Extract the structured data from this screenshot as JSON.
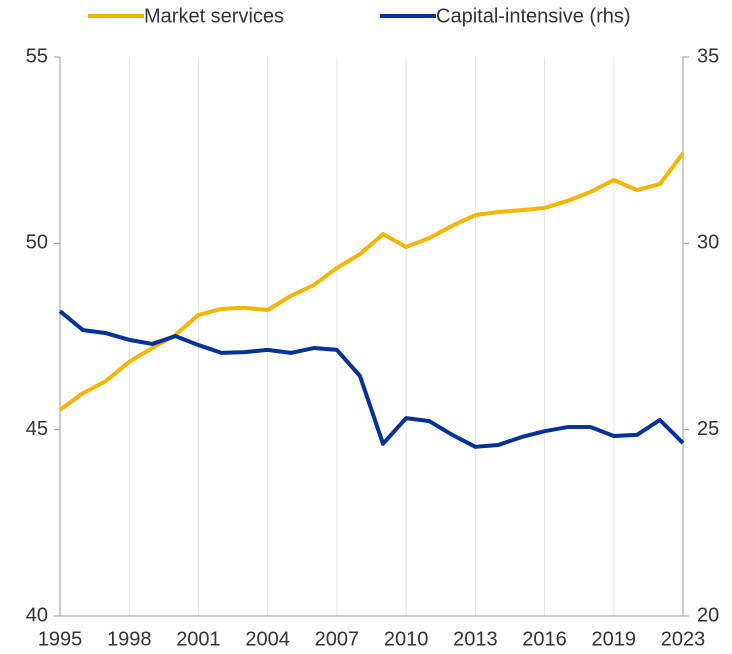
{
  "chart_data": {
    "type": "line",
    "categories": [
      "1995",
      null,
      null,
      "1998",
      null,
      null,
      "2001",
      null,
      null,
      "2004",
      null,
      null,
      "2007",
      null,
      null,
      "2010",
      null,
      null,
      "2013",
      null,
      null,
      "2016",
      null,
      null,
      "2019",
      null,
      null,
      "2023"
    ],
    "series": [
      {
        "name": "Market services",
        "color": "#f5b400",
        "values": [
          45.53,
          45.98,
          46.31,
          46.82,
          47.19,
          47.54,
          48.08,
          48.24,
          48.27,
          48.21,
          48.59,
          48.88,
          49.34,
          49.71,
          50.25,
          49.9,
          50.14,
          50.47,
          50.76,
          50.84,
          50.89,
          50.95,
          51.14,
          51.38,
          51.7,
          51.43,
          51.59,
          52.42
        ]
      },
      {
        "name": "Capital-intensive (rhs)",
        "color": "#003299",
        "axis": "y2",
        "values": [
          28.18,
          27.67,
          27.59,
          27.41,
          27.3,
          27.51,
          27.27,
          27.06,
          27.08,
          27.14,
          27.06,
          27.19,
          27.14,
          26.44,
          24.62,
          25.31,
          25.23,
          24.86,
          24.54,
          24.59,
          24.8,
          24.96,
          25.07,
          25.07,
          24.83,
          24.86,
          25.26,
          24.64
        ]
      }
    ],
    "ylim": [
      40,
      55
    ],
    "yticks": [
      40,
      45,
      50,
      55
    ],
    "y2lim": [
      20,
      35
    ],
    "y2ticks": [
      20,
      25,
      30,
      35
    ],
    "grid": true
  }
}
